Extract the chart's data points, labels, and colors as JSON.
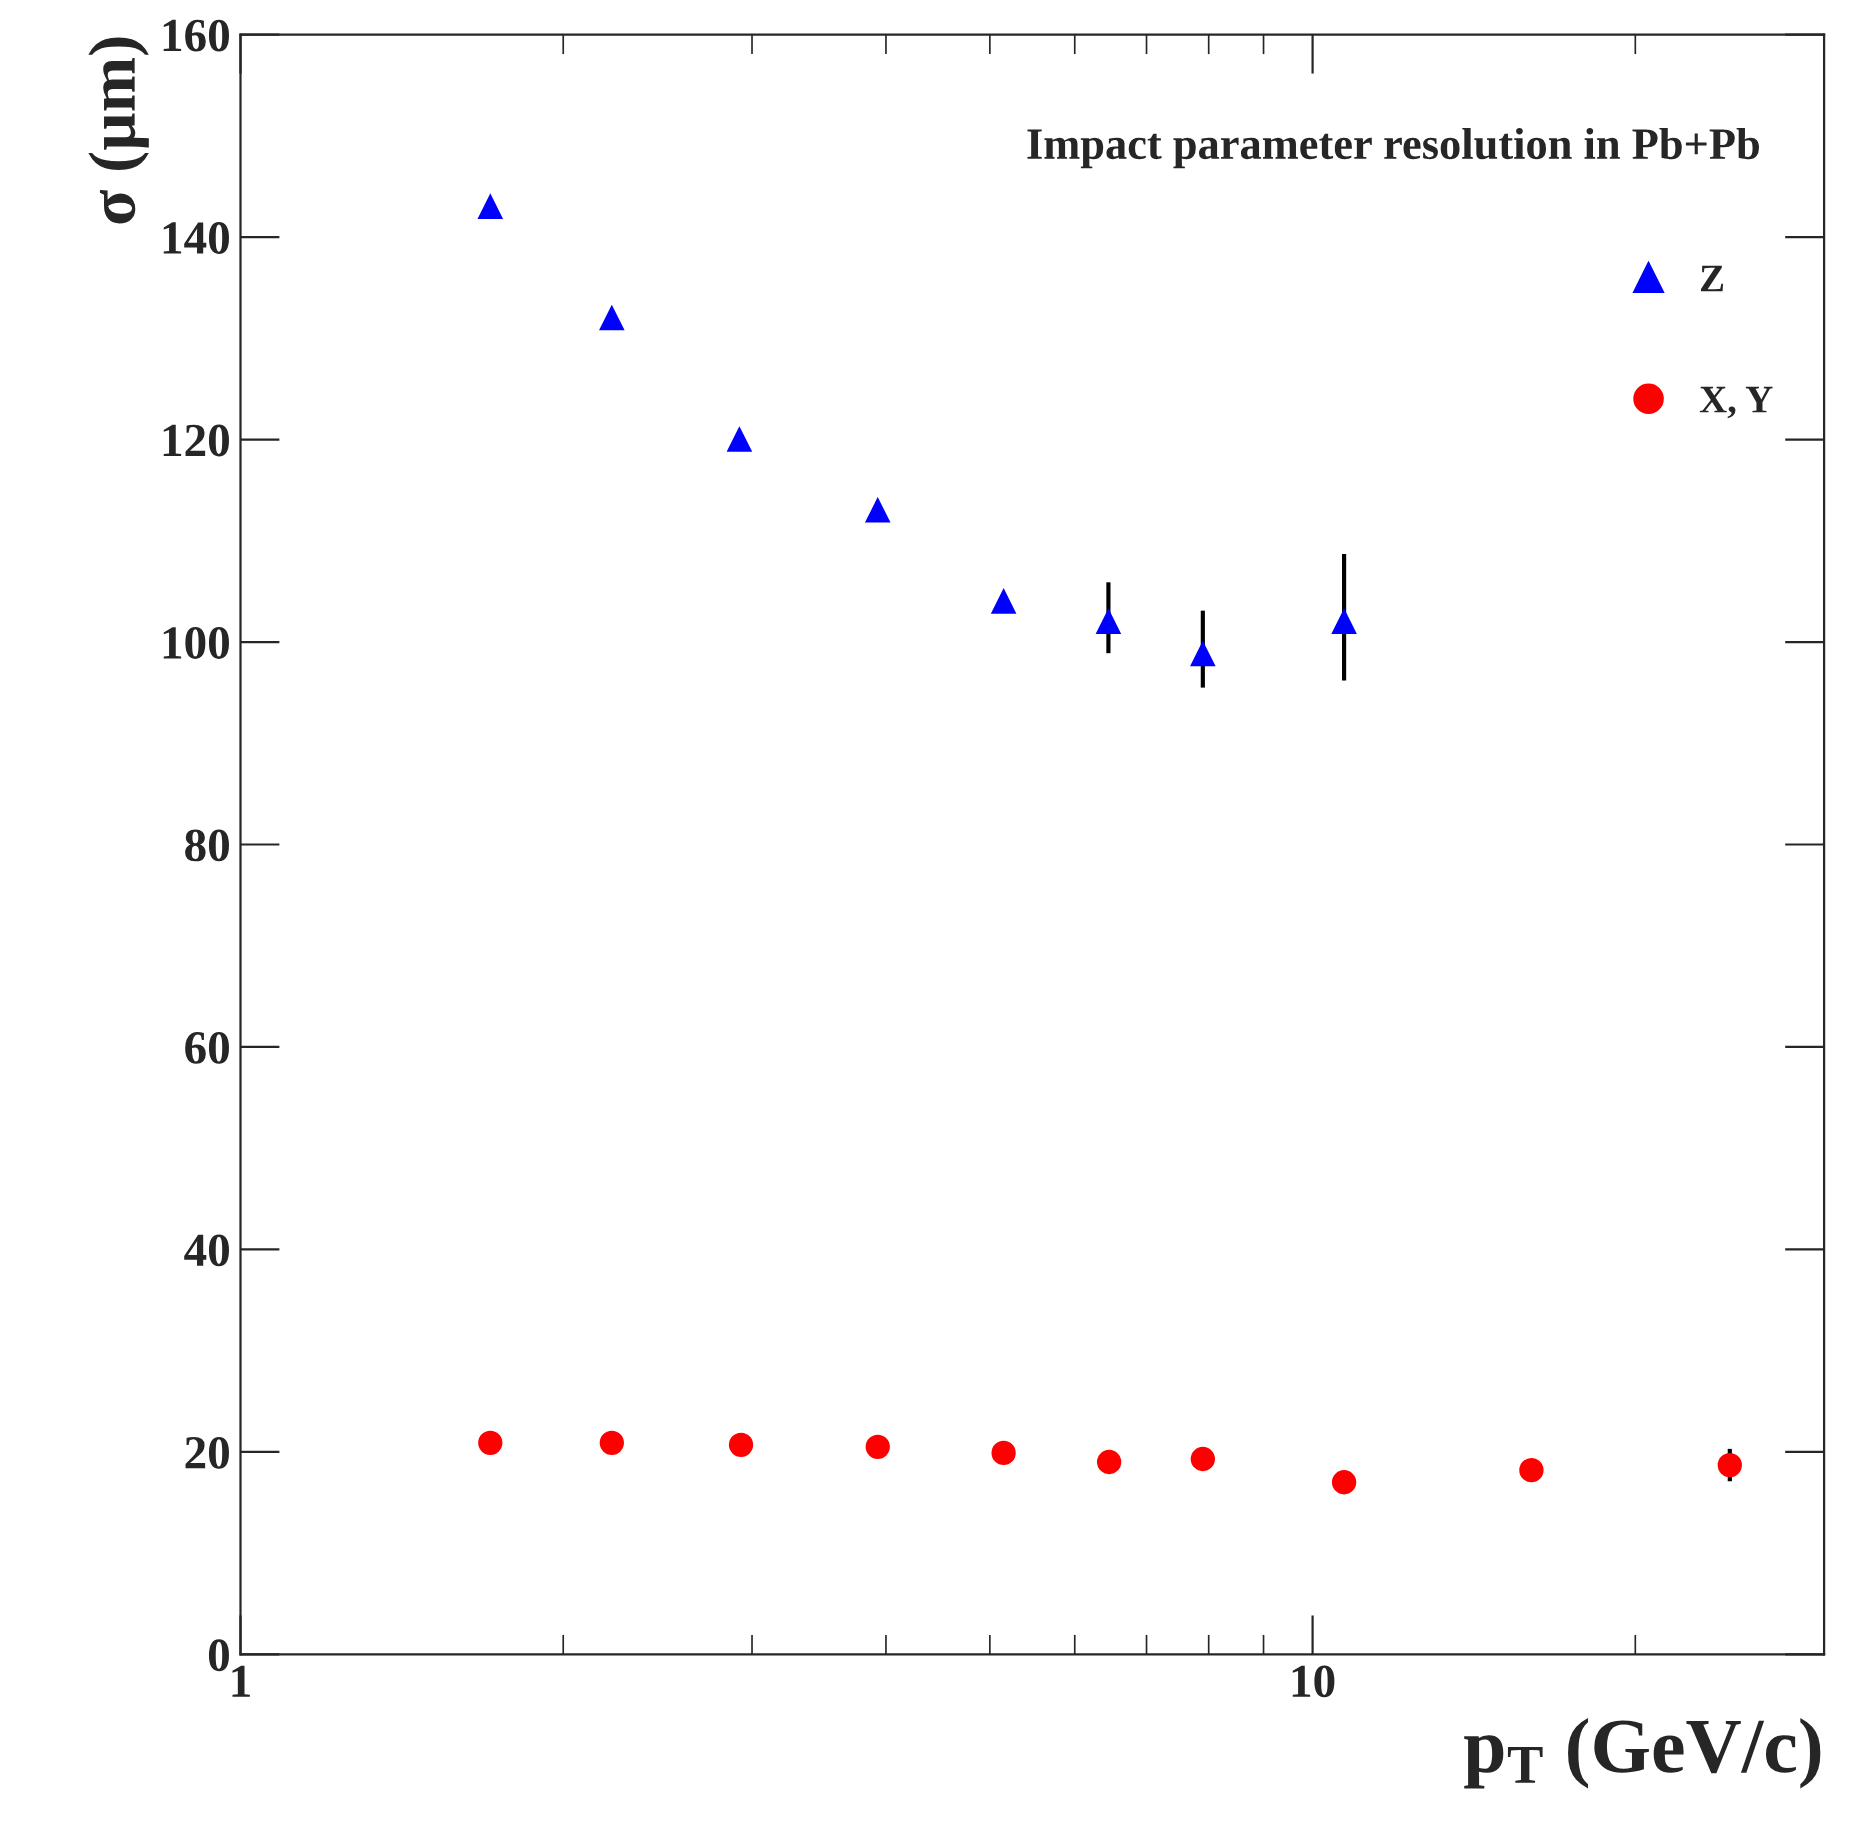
{
  "chart_data": {
    "type": "scatter",
    "title": "Impact parameter resolution in Pb+Pb",
    "xlabel": "p$_{T}$ (GeV/c)",
    "ylabel": "σ (µm)",
    "log": "x",
    "xlim": [
      1,
      30
    ],
    "xticks": [
      1,
      10
    ],
    "ylim": [
      0,
      160
    ],
    "yticks": [
      0,
      20,
      40,
      60,
      80,
      100,
      120,
      140,
      160
    ],
    "grid": false,
    "legend": "top right",
    "series": [
      {
        "name": "Z",
        "color": "#0000ff",
        "marker": "triangle",
        "x": [
          1.71,
          2.22,
          2.92,
          3.93,
          5.15,
          6.45,
          7.9,
          10.7
        ],
        "values": [
          143,
          132,
          120,
          113,
          104,
          102,
          98.8,
          102
        ],
        "errors": [
          null,
          null,
          null,
          null,
          null,
          [
            98.9,
            105.9
          ],
          [
            95.5,
            103.1
          ],
          [
            96.2,
            108.7
          ]
        ]
      },
      {
        "name": "X, Y",
        "color": "#ff0000",
        "marker": "circle",
        "x": [
          1.71,
          2.22,
          2.93,
          3.93,
          5.15,
          6.46,
          7.9,
          10.7,
          16.0,
          24.5
        ],
        "values": [
          20.9,
          20.9,
          20.7,
          20.5,
          19.9,
          19.0,
          19.3,
          17.0,
          18.2,
          18.7
        ],
        "errors": [
          null,
          null,
          null,
          null,
          null,
          null,
          null,
          null,
          null,
          1.6
        ]
      }
    ]
  }
}
